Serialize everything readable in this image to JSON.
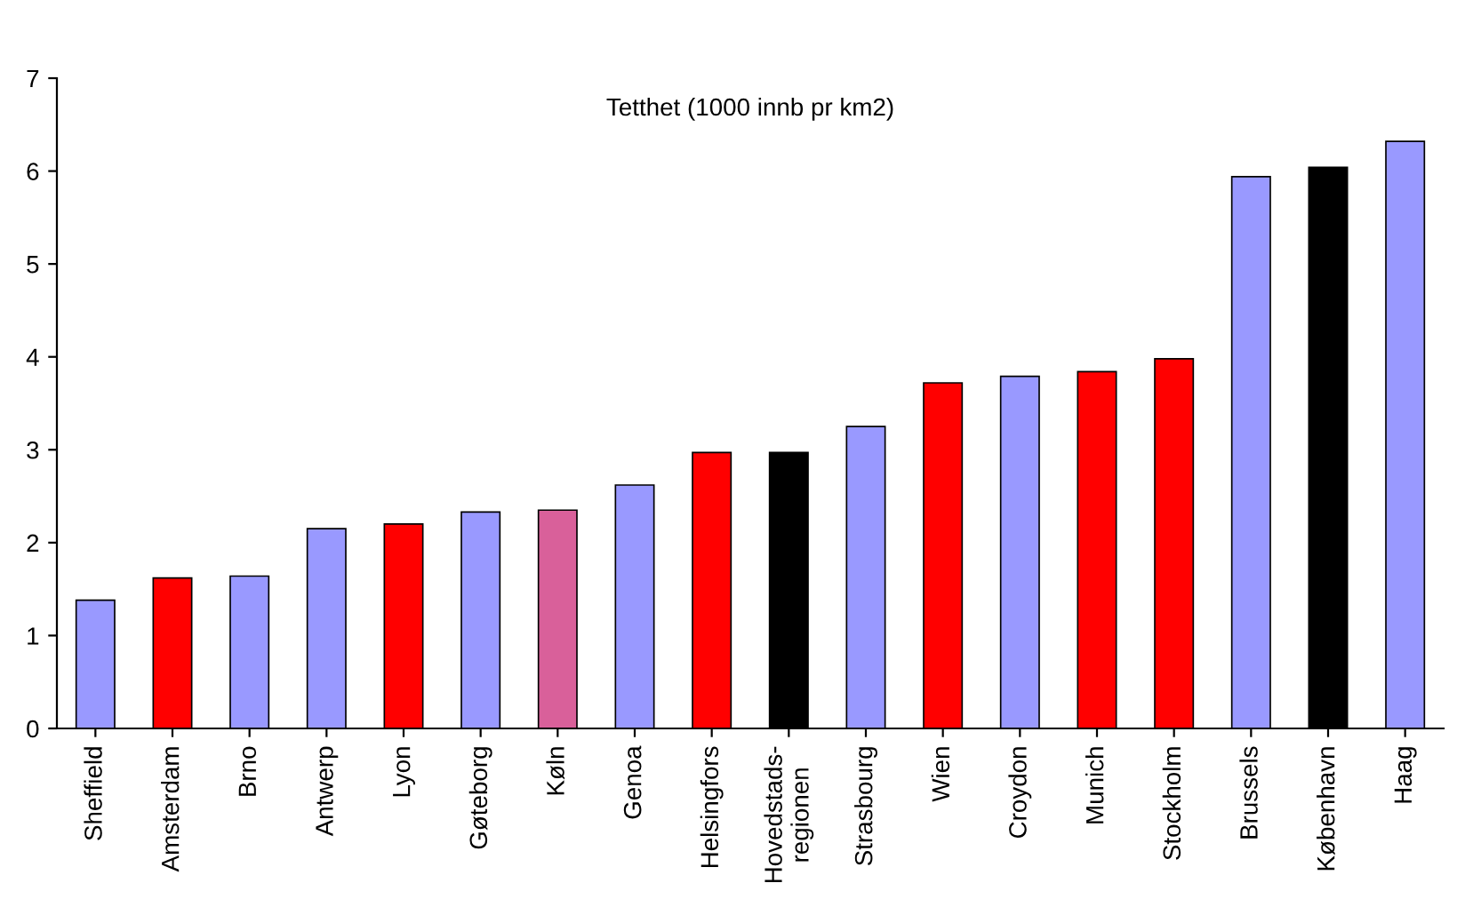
{
  "chart_data": {
    "type": "bar",
    "title": "Tetthet (1000 innb pr km2)",
    "categories": [
      "Sheffield",
      "Amsterdam",
      "Brno",
      "Antwerp",
      "Lyon",
      "Gøteborg",
      "Køln",
      "Genoa",
      "Helsingfors",
      "Hovedstads-\nregionen",
      "Strasbourg",
      "Wien",
      "Croydon",
      "Munich",
      "Stockholm",
      "Brussels",
      "København",
      "Haag"
    ],
    "values": [
      1.38,
      1.62,
      1.64,
      2.15,
      2.2,
      2.33,
      2.35,
      2.62,
      2.97,
      2.97,
      3.25,
      3.72,
      3.79,
      3.84,
      3.98,
      5.94,
      6.04,
      6.32
    ],
    "colors": [
      "#9999ff",
      "#ff0000",
      "#9999ff",
      "#9999ff",
      "#ff0000",
      "#9999ff",
      "#d9609a",
      "#9999ff",
      "#ff0000",
      "#000000",
      "#9999ff",
      "#ff0000",
      "#9999ff",
      "#ff0000",
      "#ff0000",
      "#9999ff",
      "#000000",
      "#9999ff"
    ],
    "ylim": [
      0,
      7
    ],
    "yticks": [
      0,
      1,
      2,
      3,
      4,
      5,
      6,
      7
    ],
    "grid": false,
    "legend": false
  }
}
